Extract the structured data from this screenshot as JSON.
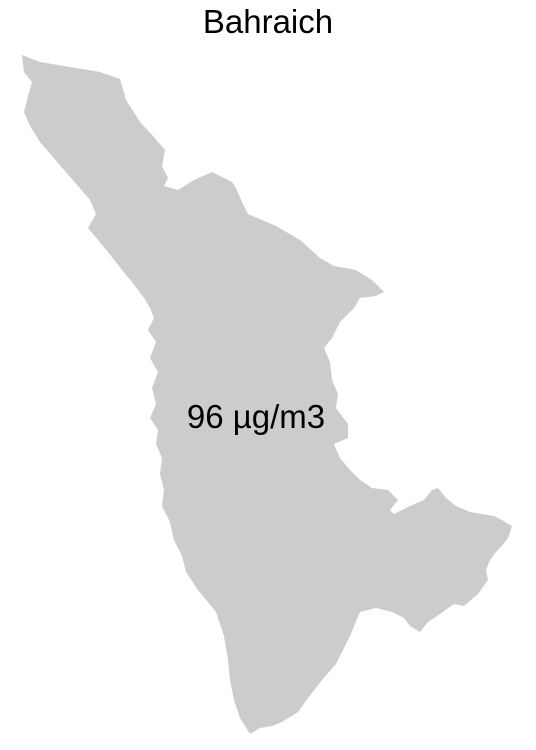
{
  "title": "Bahraich",
  "region": {
    "name": "Bahraich",
    "value_label": "96 µg/m3",
    "fill_color": "#cccccc"
  }
}
